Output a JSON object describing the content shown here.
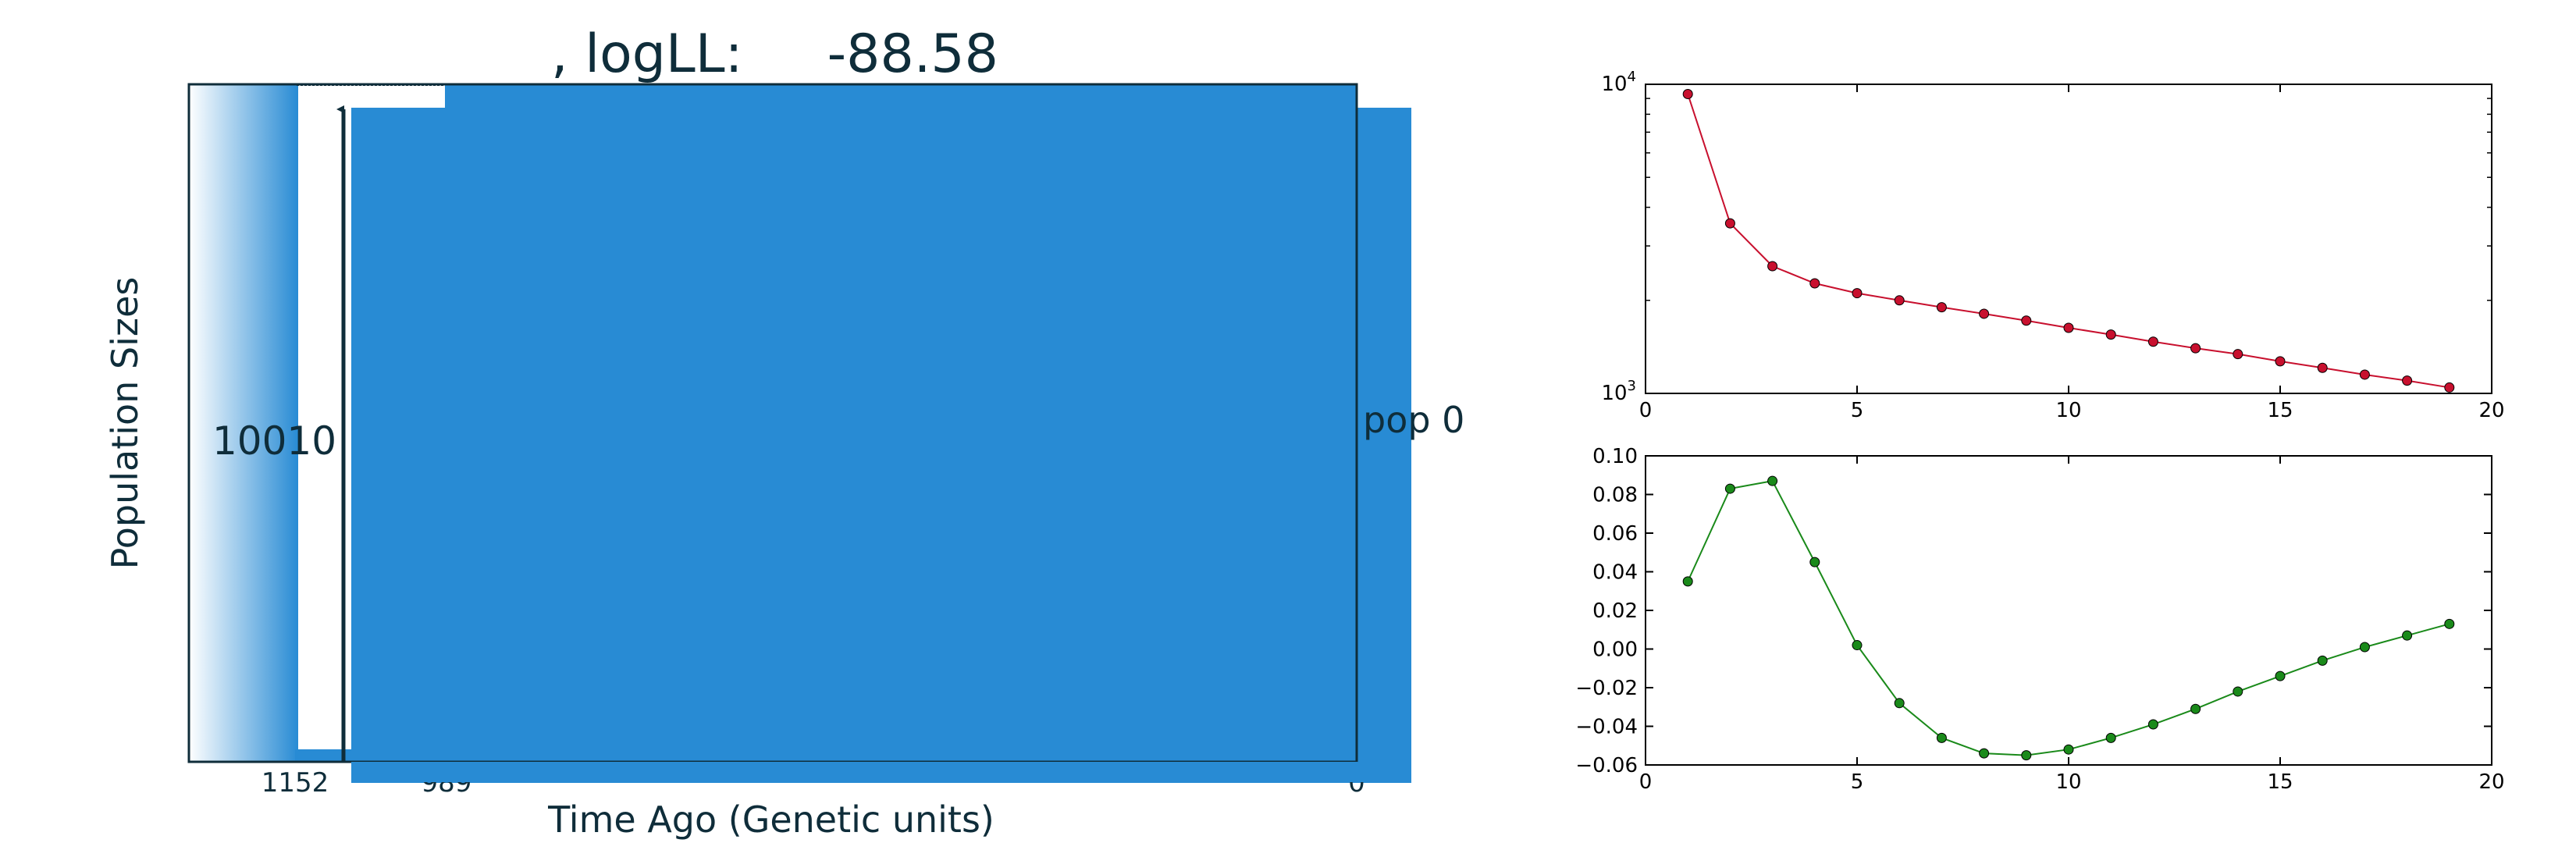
{
  "chart_data": [
    {
      "type": "area",
      "title": ", logLL:     -88.58",
      "xlabel": "Time Ago (Genetic units)",
      "ylabel": "Population Sizes",
      "x_tick_labels": [
        "1152",
        "989",
        "0"
      ],
      "size_label": "10010",
      "population_label": "pop 0",
      "colors": {
        "fill": "#288bd4",
        "axis": "#0f2d3a",
        "arrow": "#0f2d3a"
      }
    },
    {
      "type": "line",
      "yscale": "log",
      "xlim": [
        0,
        20
      ],
      "ylim": [
        1000,
        10000
      ],
      "x_ticks": [
        0,
        5,
        10,
        15,
        20
      ],
      "y_tick_labels": [
        {
          "base": "10",
          "exp": "3",
          "value": 1000
        },
        {
          "base": "10",
          "exp": "4",
          "value": 10000
        }
      ],
      "color": "#c8102e",
      "x": [
        1,
        2,
        3,
        4,
        5,
        6,
        7,
        8,
        9,
        10,
        11,
        12,
        13,
        14,
        15,
        16,
        17,
        18,
        19
      ],
      "values": [
        9300,
        3550,
        2580,
        2270,
        2110,
        2000,
        1900,
        1810,
        1720,
        1630,
        1550,
        1470,
        1400,
        1340,
        1270,
        1210,
        1150,
        1100,
        1045
      ]
    },
    {
      "type": "line",
      "xlim": [
        0,
        20
      ],
      "ylim": [
        -0.06,
        0.1
      ],
      "x_ticks": [
        0,
        5,
        10,
        15,
        20
      ],
      "y_ticks": [
        "−0.06",
        "−0.04",
        "−0.02",
        "0.00",
        "0.02",
        "0.04",
        "0.06",
        "0.08",
        "0.10"
      ],
      "y_tick_values": [
        -0.06,
        -0.04,
        -0.02,
        0.0,
        0.02,
        0.04,
        0.06,
        0.08,
        0.1
      ],
      "color": "#1a8a1a",
      "x": [
        1,
        2,
        3,
        4,
        5,
        6,
        7,
        8,
        9,
        10,
        11,
        12,
        13,
        14,
        15,
        16,
        17,
        18,
        19
      ],
      "values": [
        0.035,
        0.083,
        0.087,
        0.045,
        0.002,
        -0.028,
        -0.046,
        -0.054,
        -0.055,
        -0.052,
        -0.046,
        -0.039,
        -0.031,
        -0.022,
        -0.014,
        -0.006,
        0.001,
        0.007,
        0.013
      ]
    }
  ]
}
